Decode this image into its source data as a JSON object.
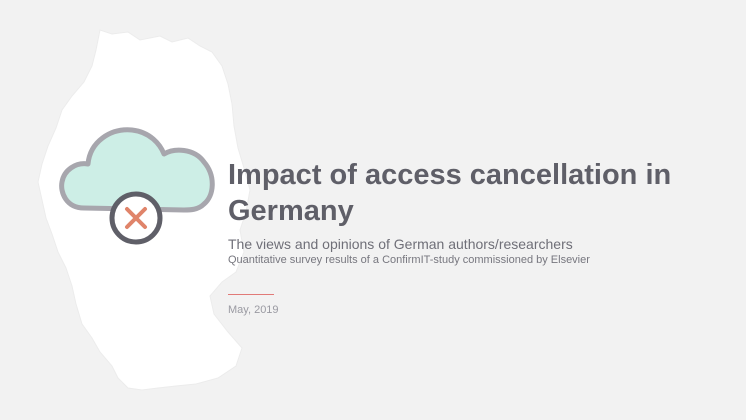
{
  "slide": {
    "title": "Impact of access cancellation in Germany",
    "subtitle": "The views and opinions of German authors/researchers",
    "description": "Quantitative survey results of a ConfirmIT-study commissioned by Elsevier",
    "date": "May, 2019"
  },
  "icons": {
    "map": "germany-map-icon",
    "cloud": "cloud-cancel-icon"
  },
  "colors": {
    "background": "#f2f2f2",
    "map_fill": "#ffffff",
    "cloud_fill": "#cdeee6",
    "cloud_stroke": "#a7a6ad",
    "cancel_circle_stroke": "#5f5f68",
    "cancel_x": "#e0846a",
    "title_text": "#5f5f68",
    "accent_rule": "#e17a78"
  }
}
